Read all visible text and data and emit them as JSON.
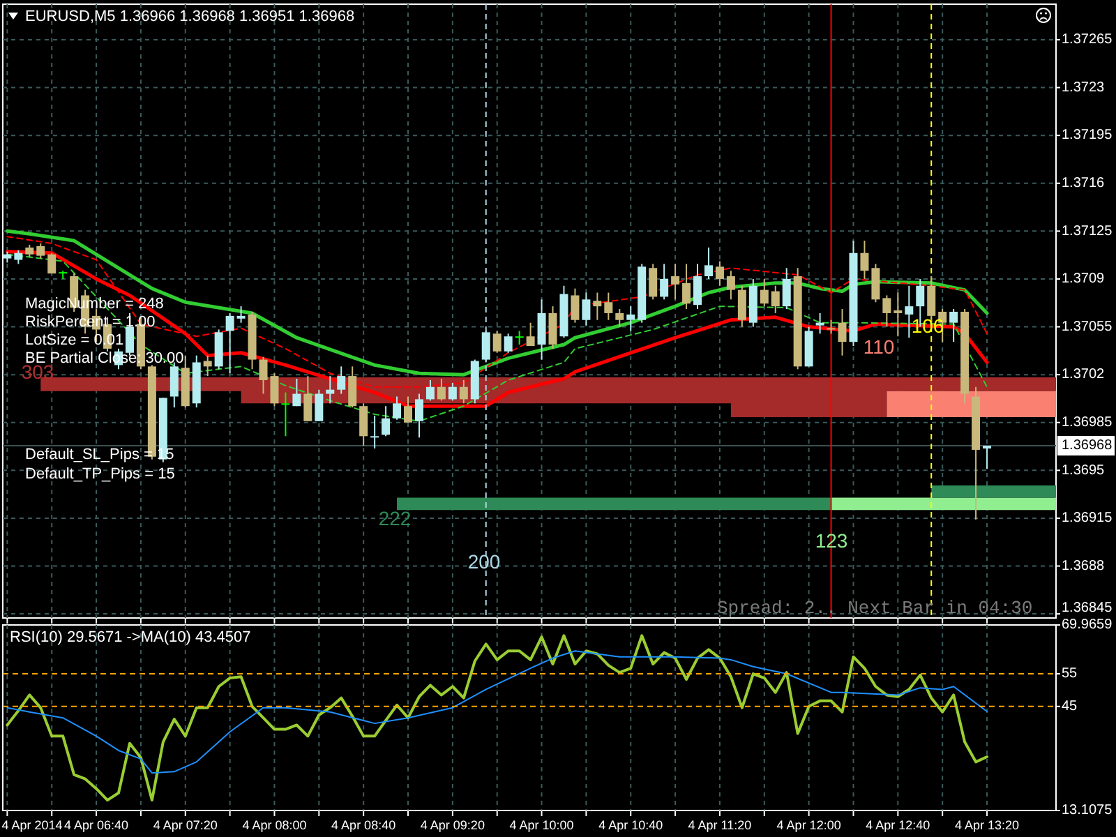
{
  "chart_data": [
    {
      "type": "candlestick",
      "title": "EURUSD,M5  1.36966 1.36968 1.36951 1.36968",
      "x": [
        "2014-04-04T06:00",
        "2014-04-04T06:05",
        "2014-04-04T06:10",
        "2014-04-04T06:15",
        "2014-04-04T06:20",
        "2014-04-04T06:25",
        "2014-04-04T06:30",
        "2014-04-04T06:35",
        "2014-04-04T06:40",
        "2014-04-04T06:45",
        "2014-04-04T06:50",
        "2014-04-04T06:55",
        "2014-04-04T07:00",
        "2014-04-04T07:05",
        "2014-04-04T07:10",
        "2014-04-04T07:15",
        "2014-04-04T07:20",
        "2014-04-04T07:25",
        "2014-04-04T07:30",
        "2014-04-04T07:35",
        "2014-04-04T07:40",
        "2014-04-04T07:45",
        "2014-04-04T07:50",
        "2014-04-04T07:55",
        "2014-04-04T08:00",
        "2014-04-04T08:05",
        "2014-04-04T08:10",
        "2014-04-04T08:15",
        "2014-04-04T08:20",
        "2014-04-04T08:25",
        "2014-04-04T08:30",
        "2014-04-04T08:35",
        "2014-04-04T08:40",
        "2014-04-04T08:45",
        "2014-04-04T08:50",
        "2014-04-04T08:55",
        "2014-04-04T09:00",
        "2014-04-04T09:05",
        "2014-04-04T09:10",
        "2014-04-04T09:15",
        "2014-04-04T09:20",
        "2014-04-04T09:25",
        "2014-04-04T09:30",
        "2014-04-04T09:35",
        "2014-04-04T09:40",
        "2014-04-04T09:45",
        "2014-04-04T09:50",
        "2014-04-04T09:55",
        "2014-04-04T10:00",
        "2014-04-04T10:05",
        "2014-04-04T10:10",
        "2014-04-04T10:15",
        "2014-04-04T10:20",
        "2014-04-04T10:25",
        "2014-04-04T10:30",
        "2014-04-04T10:35",
        "2014-04-04T10:40",
        "2014-04-04T10:45",
        "2014-04-04T10:50",
        "2014-04-04T10:55",
        "2014-04-04T11:00",
        "2014-04-04T11:05",
        "2014-04-04T11:10",
        "2014-04-04T11:15",
        "2014-04-04T11:20",
        "2014-04-04T11:25",
        "2014-04-04T11:30",
        "2014-04-04T11:35",
        "2014-04-04T11:40",
        "2014-04-04T11:45",
        "2014-04-04T11:50",
        "2014-04-04T11:55",
        "2014-04-04T12:00",
        "2014-04-04T12:05",
        "2014-04-04T12:10",
        "2014-04-04T12:15",
        "2014-04-04T12:20",
        "2014-04-04T12:25",
        "2014-04-04T12:30",
        "2014-04-04T12:35",
        "2014-04-04T12:40",
        "2014-04-04T12:45",
        "2014-04-04T12:50",
        "2014-04-04T12:55",
        "2014-04-04T13:00",
        "2014-04-04T13:05",
        "2014-04-04T13:10",
        "2014-04-04T13:15",
        "2014-04-04T13:20"
      ],
      "ohlc": [
        [
          1.37105,
          1.3711,
          1.37102,
          1.37108
        ],
        [
          1.37104,
          1.37111,
          1.37101,
          1.37109
        ],
        [
          1.37113,
          1.37115,
          1.37106,
          1.37108
        ],
        [
          1.37114,
          1.37116,
          1.37105,
          1.37107
        ],
        [
          1.37108,
          1.37109,
          1.37094,
          1.37094
        ],
        [
          1.37095,
          1.37096,
          1.3709,
          1.37095
        ],
        [
          1.37092,
          1.37094,
          1.37066,
          1.37069
        ],
        [
          1.37078,
          1.37082,
          1.3705,
          1.37055
        ],
        [
          1.37063,
          1.37068,
          1.37044,
          1.37053
        ],
        [
          1.37057,
          1.37062,
          1.37037,
          1.37039
        ],
        [
          1.37027,
          1.37039,
          1.37024,
          1.37037
        ],
        [
          1.37036,
          1.37065,
          1.37034,
          1.37055
        ],
        [
          1.37057,
          1.37062,
          1.37024,
          1.37026
        ],
        [
          1.37026,
          1.37027,
          1.36958,
          1.3696
        ],
        [
          1.36958,
          1.37003,
          1.36956,
          1.37003
        ],
        [
          1.37004,
          1.37029,
          1.36996,
          1.37026
        ],
        [
          1.37025,
          1.37034,
          1.36996,
          1.36997
        ],
        [
          1.36999,
          1.37034,
          1.36996,
          1.37029
        ],
        [
          1.3703,
          1.37034,
          1.37019,
          1.37026
        ],
        [
          1.37026,
          1.37053,
          1.37024,
          1.37051
        ],
        [
          1.37052,
          1.37065,
          1.37021,
          1.37063
        ],
        [
          1.37061,
          1.3707,
          1.37058,
          1.37063
        ],
        [
          1.37064,
          1.37066,
          1.37024,
          1.37031
        ],
        [
          1.37031,
          1.37033,
          1.37006,
          1.37016
        ],
        [
          1.37019,
          1.37021,
          1.36997,
          1.36999
        ],
        [
          1.36999,
          1.37007,
          1.36975,
          1.36999
        ],
        [
          1.36997,
          1.37017,
          1.36997,
          1.37006
        ],
        [
          1.37006,
          1.37019,
          1.36986,
          1.36986
        ],
        [
          1.36986,
          1.37009,
          1.36986,
          1.37006
        ],
        [
          1.37006,
          1.37019,
          1.36999,
          1.37009
        ],
        [
          1.37009,
          1.37026,
          1.37006,
          1.37019
        ],
        [
          1.37019,
          1.37026,
          1.36996,
          1.36997
        ],
        [
          1.36997,
          1.36999,
          1.36968,
          1.36975
        ],
        [
          1.36974,
          1.3699,
          1.36966,
          1.36975
        ],
        [
          1.36976,
          1.36997,
          1.36975,
          1.36988
        ],
        [
          1.36988,
          1.37004,
          1.36987,
          1.36999
        ],
        [
          1.36997,
          1.37004,
          1.36985,
          1.36985
        ],
        [
          1.36986,
          1.37006,
          1.36974,
          1.37002
        ],
        [
          1.37002,
          1.37016,
          1.37001,
          1.37011
        ],
        [
          1.37011,
          1.37017,
          1.37001,
          1.37002
        ],
        [
          1.37002,
          1.37014,
          1.37001,
          1.37011
        ],
        [
          1.37011,
          1.37016,
          1.36999,
          1.37002
        ],
        [
          1.37002,
          1.37031,
          1.36999,
          1.3703
        ],
        [
          1.37031,
          1.37052,
          1.37029,
          1.37051
        ],
        [
          1.3705,
          1.37052,
          1.37036,
          1.37037
        ],
        [
          1.37037,
          1.3705,
          1.37036,
          1.37048
        ],
        [
          1.37048,
          1.37052,
          1.37042,
          1.37048
        ],
        [
          1.37048,
          1.37058,
          1.37041,
          1.37041
        ],
        [
          1.37042,
          1.37075,
          1.37031,
          1.37065
        ],
        [
          1.37065,
          1.3707,
          1.37039,
          1.37042
        ],
        [
          1.37048,
          1.37085,
          1.37047,
          1.37079
        ],
        [
          1.37078,
          1.37083,
          1.37058,
          1.3706
        ],
        [
          1.3706,
          1.3708,
          1.37056,
          1.37075
        ],
        [
          1.37074,
          1.3708,
          1.3706,
          1.3707
        ],
        [
          1.37073,
          1.3708,
          1.3706,
          1.37065
        ],
        [
          1.37065,
          1.37068,
          1.37055,
          1.3706
        ],
        [
          1.3706,
          1.3707,
          1.37052,
          1.37064
        ],
        [
          1.3706,
          1.37101,
          1.37058,
          1.37099
        ],
        [
          1.37098,
          1.37101,
          1.37075,
          1.37077
        ],
        [
          1.37077,
          1.37101,
          1.37075,
          1.3709
        ],
        [
          1.37092,
          1.37101,
          1.37075,
          1.37086
        ],
        [
          1.37087,
          1.37101,
          1.37068,
          1.37072
        ],
        [
          1.37071,
          1.37101,
          1.37068,
          1.37092
        ],
        [
          1.37092,
          1.37113,
          1.3709,
          1.371
        ],
        [
          1.37099,
          1.37103,
          1.37085,
          1.3709
        ],
        [
          1.37092,
          1.37096,
          1.37075,
          1.37082
        ],
        [
          1.37082,
          1.37085,
          1.37055,
          1.3706
        ],
        [
          1.37058,
          1.3709,
          1.37055,
          1.37085
        ],
        [
          1.37082,
          1.3709,
          1.3707,
          1.37072
        ],
        [
          1.37081,
          1.37085,
          1.37065,
          1.3707
        ],
        [
          1.3707,
          1.37098,
          1.37068,
          1.3709
        ],
        [
          1.37092,
          1.37098,
          1.37024,
          1.37026
        ],
        [
          1.37026,
          1.37055,
          1.37026,
          1.37052
        ],
        [
          1.37056,
          1.37065,
          1.3705,
          1.37058
        ],
        [
          1.37054,
          1.3706,
          1.3705,
          1.37053
        ],
        [
          1.37058,
          1.37068,
          1.37034,
          1.37044
        ],
        [
          1.37044,
          1.37118,
          1.37041,
          1.37109
        ],
        [
          1.37109,
          1.37118,
          1.3709,
          1.37096
        ],
        [
          1.37098,
          1.37101,
          1.37073,
          1.37075
        ],
        [
          1.37076,
          1.37078,
          1.37055,
          1.37065
        ],
        [
          1.37067,
          1.3708,
          1.37048,
          1.37065
        ],
        [
          1.37064,
          1.37085,
          1.37047,
          1.3707
        ],
        [
          1.3707,
          1.3709,
          1.37055,
          1.37085
        ],
        [
          1.37085,
          1.37092,
          1.37055,
          1.37063
        ],
        [
          1.37066,
          1.37068,
          1.37044,
          1.37058
        ],
        [
          1.37058,
          1.37068,
          1.37044,
          1.37066
        ],
        [
          1.37066,
          1.37068,
          1.36999,
          1.37006
        ],
        [
          1.37004,
          1.37011,
          1.36914,
          1.36965
        ],
        [
          1.36966,
          1.36968,
          1.36951,
          1.36968
        ]
      ],
      "colors": [
        "#b4ecf0",
        "#b4ecf0",
        "#c8b87c",
        "#c8b87c",
        "#c8b87c",
        "#00ff00",
        "#c8b87c",
        "#c8b87c",
        "#c8b87c",
        "#c8b87c",
        "#b4ecf0",
        "#b4ecf0",
        "#c8b87c",
        "#c8b87c",
        "#b4ecf0",
        "#b4ecf0",
        "#c8b87c",
        "#b4ecf0",
        "#c8b87c",
        "#b4ecf0",
        "#b4ecf0",
        "#b4ecf0",
        "#c8b87c",
        "#c8b87c",
        "#c8b87c",
        "#00ff00",
        "#b4ecf0",
        "#c8b87c",
        "#b4ecf0",
        "#b4ecf0",
        "#b4ecf0",
        "#c8b87c",
        "#c8b87c",
        "#b4ecf0",
        "#b4ecf0",
        "#b4ecf0",
        "#c8b87c",
        "#b4ecf0",
        "#b4ecf0",
        "#c8b87c",
        "#b4ecf0",
        "#c8b87c",
        "#b4ecf0",
        "#b4ecf0",
        "#c8b87c",
        "#b4ecf0",
        "#00ff00",
        "#c8b87c",
        "#b4ecf0",
        "#c8b87c",
        "#b4ecf0",
        "#c8b87c",
        "#b4ecf0",
        "#c8b87c",
        "#c8b87c",
        "#c8b87c",
        "#b4ecf0",
        "#b4ecf0",
        "#c8b87c",
        "#b4ecf0",
        "#c8b87c",
        "#c8b87c",
        "#b4ecf0",
        "#b4ecf0",
        "#c8b87c",
        "#c8b87c",
        "#c8b87c",
        "#b4ecf0",
        "#c8b87c",
        "#c8b87c",
        "#b4ecf0",
        "#c8b87c",
        "#b4ecf0",
        "#b4ecf0",
        "#c8b87c",
        "#c8b87c",
        "#b4ecf0",
        "#c8b87c",
        "#c8b87c",
        "#c8b87c",
        "#c8b87c",
        "#b4ecf0",
        "#b4ecf0",
        "#c8b87c",
        "#c8b87c",
        "#b4ecf0",
        "#c8b87c",
        "#c8b87c",
        "#b4ecf0"
      ],
      "series": [
        {
          "type": "line",
          "color": "#a52a2a",
          "x": [
            "2014-04-04T06:15",
            "2014-04-04T07:45",
            "2014-04-04T07:45",
            "2014-04-04T11:25",
            "2014-04-04T11:25",
            "2014-04-04T12:35",
            "2014-04-04T12:35",
            "2014-04-04T13:51"
          ],
          "values": [
            null,
            null,
            null,
            null,
            null,
            null,
            null,
            null
          ],
          "lower": [
            1.37008,
            1.37008,
            1.36999,
            1.36999,
            1.36989,
            1.36989,
            1.37008,
            1.37008
          ],
          "upper": [
            1.37018,
            1.37018,
            1.37018,
            1.37018,
            1.37018,
            1.37018,
            1.37018,
            1.37018
          ]
        },
        {
          "type": "line",
          "color": "#fa8072",
          "x": [
            "2014-04-04T12:35",
            "2014-04-04T13:51"
          ],
          "values": [
            null,
            null
          ],
          "lower": [
            1.36989,
            1.36989
          ],
          "upper": [
            1.37008,
            1.37008
          ]
        },
        {
          "type": "line",
          "color": "#2e8b57",
          "x": [
            "2014-04-04T08:55",
            "2014-04-04T12:10"
          ],
          "values": [
            null,
            null
          ],
          "lower": [
            1.36921,
            1.36921
          ],
          "upper": [
            1.3693,
            1.3693
          ]
        },
        {
          "type": "line",
          "color": "#90ee90",
          "x": [
            "2014-04-04T12:10",
            "2014-04-04T13:51"
          ],
          "values": [
            null,
            null
          ],
          "lower": [
            1.36921,
            1.36921
          ],
          "upper": [
            1.3693,
            1.3693
          ]
        },
        {
          "type": "line",
          "color": "#2e8b57",
          "x": [
            "2014-04-04T12:55",
            "2014-04-04T13:51"
          ],
          "values": [
            null,
            null
          ],
          "lower": [
            1.3693,
            1.3693
          ],
          "upper": [
            1.36939,
            1.36939
          ]
        },
        {
          "type": "line",
          "color": "#32cd32",
          "line_style": "solid",
          "x": [
            "2014-04-04T06:00",
            "2014-04-04T06:10",
            "2014-04-04T06:30",
            "2014-04-04T06:55",
            "2014-04-04T07:05",
            "2014-04-04T07:20",
            "2014-04-04T07:50",
            "2014-04-04T08:10",
            "2014-04-04T08:45",
            "2014-04-04T09:05",
            "2014-04-04T09:25",
            "2014-04-04T09:45",
            "2014-04-04T10:10",
            "2014-04-04T10:15",
            "2014-04-04T10:40",
            "2014-04-04T11:00",
            "2014-04-04T11:15",
            "2014-04-04T11:25",
            "2014-04-04T11:45",
            "2014-04-04T11:55",
            "2014-04-04T12:05",
            "2014-04-04T12:15",
            "2014-04-04T12:20",
            "2014-04-04T12:30",
            "2014-04-04T12:55",
            "2014-04-04T13:10",
            "2014-04-04T13:20"
          ],
          "values": [
            1.37125,
            1.37123,
            1.37118,
            1.37093,
            1.37083,
            1.37073,
            1.37065,
            1.37047,
            1.37027,
            1.37021,
            1.3702,
            1.37032,
            1.37042,
            1.37047,
            1.37058,
            1.3707,
            1.3708,
            1.37084,
            1.37087,
            1.37087,
            1.37083,
            1.37081,
            1.37086,
            1.37088,
            1.37087,
            1.37082,
            1.37065
          ]
        },
        {
          "type": "line",
          "color": "#ff0000",
          "line_style": "solid",
          "x": [
            "2014-04-04T06:00",
            "2014-04-04T06:20",
            "2014-04-04T06:40",
            "2014-04-04T06:55",
            "2014-04-04T07:20",
            "2014-04-04T07:30",
            "2014-04-04T07:45",
            "2014-04-04T08:05",
            "2014-04-04T08:25",
            "2014-04-04T08:45",
            "2014-04-04T09:00",
            "2014-04-04T09:35",
            "2014-04-04T09:45",
            "2014-04-04T10:10",
            "2014-04-04T10:15",
            "2014-04-04T10:40",
            "2014-04-04T11:00",
            "2014-04-04T11:25",
            "2014-04-04T11:45",
            "2014-04-04T12:00",
            "2014-04-04T12:20",
            "2014-04-04T12:30",
            "2014-04-04T13:05",
            "2014-04-04T13:10",
            "2014-04-04T13:20"
          ],
          "values": [
            1.3711,
            1.37109,
            1.3709,
            1.37078,
            1.3705,
            1.37034,
            1.37036,
            1.37027,
            1.37017,
            1.37007,
            1.36997,
            1.36997,
            1.37007,
            1.37017,
            1.37022,
            1.37036,
            1.37047,
            1.3706,
            1.37062,
            1.37055,
            1.37052,
            1.37057,
            1.37055,
            1.3705,
            1.37029
          ]
        },
        {
          "type": "line",
          "color": "#ff0000",
          "line_style": "dashed",
          "x": [
            "2014-04-04T06:00",
            "2014-04-04T06:20",
            "2014-04-04T06:40",
            "2014-04-04T07:00",
            "2014-04-04T07:25",
            "2014-04-04T07:45",
            "2014-04-04T08:05",
            "2014-04-04T08:25",
            "2014-04-04T08:45",
            "2014-04-04T09:05",
            "2014-04-04T09:25",
            "2014-04-04T09:45",
            "2014-04-04T10:10",
            "2014-04-04T10:15",
            "2014-04-04T10:45",
            "2014-04-04T11:10",
            "2014-04-04T11:25",
            "2014-04-04T11:55",
            "2014-04-04T12:10",
            "2014-04-04T12:20",
            "2014-04-04T12:55",
            "2014-04-04T13:10",
            "2014-04-04T13:20"
          ],
          "values": [
            1.37121,
            1.37116,
            1.37104,
            1.37057,
            1.37048,
            1.37054,
            1.37039,
            1.37021,
            1.37011,
            1.37011,
            1.37014,
            1.37036,
            1.37057,
            1.3707,
            1.37077,
            1.37093,
            1.37098,
            1.37093,
            1.3708,
            1.3709,
            1.37085,
            1.37082,
            1.3705
          ]
        },
        {
          "type": "line",
          "color": "#32cd32",
          "line_style": "dashed",
          "x": [
            "2014-04-04T06:00",
            "2014-04-04T06:25",
            "2014-04-04T06:40",
            "2014-04-04T07:00",
            "2014-04-04T07:20",
            "2014-04-04T07:45",
            "2014-04-04T08:05",
            "2014-04-04T08:25",
            "2014-04-04T08:45",
            "2014-04-04T09:05",
            "2014-04-04T09:25",
            "2014-04-04T09:45",
            "2014-04-04T10:10",
            "2014-04-04T10:15",
            "2014-04-04T10:50",
            "2014-04-04T11:20",
            "2014-04-04T11:50",
            "2014-04-04T12:05",
            "2014-04-04T12:20",
            "2014-04-04T13:05",
            "2014-04-04T13:20"
          ],
          "values": [
            1.37108,
            1.37103,
            1.37077,
            1.37042,
            1.37021,
            1.37026,
            1.37012,
            1.37001,
            1.36991,
            1.36986,
            1.36997,
            1.37016,
            1.37029,
            1.37039,
            1.37053,
            1.3707,
            1.37069,
            1.37058,
            1.37058,
            1.37057,
            1.37011
          ]
        }
      ],
      "xlim": [
        "2014-04-04T05:58",
        "2014-04-04T13:51"
      ],
      "xticks": [
        "2014-04-04T06:00",
        "2014-04-04T06:20",
        "2014-04-04T06:40",
        "2014-04-04T07:00",
        "2014-04-04T07:20",
        "2014-04-04T07:40",
        "2014-04-04T08:00",
        "2014-04-04T08:20",
        "2014-04-04T08:40",
        "2014-04-04T09:00",
        "2014-04-04T09:20",
        "2014-04-04T09:40",
        "2014-04-04T10:00",
        "2014-04-04T10:20",
        "2014-04-04T10:40",
        "2014-04-04T11:00",
        "2014-04-04T11:20",
        "2014-04-04T11:40",
        "2014-04-04T12:00",
        "2014-04-04T12:20",
        "2014-04-04T12:40",
        "2014-04-04T13:00",
        "2014-04-04T13:20"
      ],
      "ylim": [
        1.36842,
        1.37291
      ],
      "yticks": [
        1.37265,
        1.3723,
        1.37195,
        1.3716,
        1.37125,
        1.3709,
        1.37055,
        1.3702,
        1.36985,
        1.3695,
        1.36915,
        1.3688,
        1.36845
      ],
      "grid": true,
      "tick_labels": "y",
      "ref_lines": [
        {
          "axis": "y",
          "value": 1.36968,
          "label": "1.36968",
          "color": "#3c5050"
        },
        {
          "axis": "x",
          "value": "2014-04-04T12:10",
          "color": "#ff0000"
        },
        {
          "axis": "x",
          "value": "2014-04-04T09:35",
          "color": "#add8e6",
          "line_style": "dashed"
        },
        {
          "axis": "x",
          "value": "2014-04-04T12:55",
          "color": "#ffff00",
          "line_style": "dashed"
        }
      ],
      "annotations": [
        "MagicNumber = 248",
        "RiskPercent = 1.00",
        "LotSize = 0.01",
        "BE Partial Close: 30.00",
        "Default_SL_Pips = 15",
        "Default_TP_Pips = 15",
        "Spread: 2.. Next Bar in 04:30",
        "303",
        "222",
        "200",
        "123",
        "110",
        "106"
      ]
    },
    {
      "type": "line",
      "title": "RSI(10) 29.5671  ->MA(10) 43.4507",
      "x": [
        "2014-04-04T06:00",
        "2014-04-04T06:05",
        "2014-04-04T06:10",
        "2014-04-04T06:15",
        "2014-04-04T06:20",
        "2014-04-04T06:25",
        "2014-04-04T06:30",
        "2014-04-04T06:35",
        "2014-04-04T06:40",
        "2014-04-04T06:45",
        "2014-04-04T06:50",
        "2014-04-04T06:55",
        "2014-04-04T07:00",
        "2014-04-04T07:05",
        "2014-04-04T07:10",
        "2014-04-04T07:15",
        "2014-04-04T07:20",
        "2014-04-04T07:25",
        "2014-04-04T07:30",
        "2014-04-04T07:35",
        "2014-04-04T07:40",
        "2014-04-04T07:45",
        "2014-04-04T07:50",
        "2014-04-04T07:55",
        "2014-04-04T08:00",
        "2014-04-04T08:05",
        "2014-04-04T08:10",
        "2014-04-04T08:15",
        "2014-04-04T08:20",
        "2014-04-04T08:25",
        "2014-04-04T08:30",
        "2014-04-04T08:35",
        "2014-04-04T08:40",
        "2014-04-04T08:45",
        "2014-04-04T08:50",
        "2014-04-04T08:55",
        "2014-04-04T09:00",
        "2014-04-04T09:05",
        "2014-04-04T09:10",
        "2014-04-04T09:15",
        "2014-04-04T09:20",
        "2014-04-04T09:25",
        "2014-04-04T09:30",
        "2014-04-04T09:35",
        "2014-04-04T09:40",
        "2014-04-04T09:45",
        "2014-04-04T09:50",
        "2014-04-04T09:55",
        "2014-04-04T10:00",
        "2014-04-04T10:05",
        "2014-04-04T10:10",
        "2014-04-04T10:15",
        "2014-04-04T10:20",
        "2014-04-04T10:25",
        "2014-04-04T10:30",
        "2014-04-04T10:35",
        "2014-04-04T10:40",
        "2014-04-04T10:45",
        "2014-04-04T10:50",
        "2014-04-04T10:55",
        "2014-04-04T11:00",
        "2014-04-04T11:05",
        "2014-04-04T11:10",
        "2014-04-04T11:15",
        "2014-04-04T11:20",
        "2014-04-04T11:25",
        "2014-04-04T11:30",
        "2014-04-04T11:35",
        "2014-04-04T11:40",
        "2014-04-04T11:45",
        "2014-04-04T11:50",
        "2014-04-04T11:55",
        "2014-04-04T12:00",
        "2014-04-04T12:05",
        "2014-04-04T12:10",
        "2014-04-04T12:15",
        "2014-04-04T12:20",
        "2014-04-04T12:25",
        "2014-04-04T12:30",
        "2014-04-04T12:35",
        "2014-04-04T12:40",
        "2014-04-04T12:45",
        "2014-04-04T12:50",
        "2014-04-04T12:55",
        "2014-04-04T13:00",
        "2014-04-04T13:05",
        "2014-04-04T13:10",
        "2014-04-04T13:15",
        "2014-04-04T13:20"
      ],
      "series": [
        {
          "color": "#9acd32",
          "values": [
            39.3,
            43.7,
            48.5,
            44.6,
            35.9,
            35.9,
            24.1,
            22.8,
            19.8,
            16.3,
            18.5,
            33.7,
            29.3,
            16.3,
            34.1,
            41.1,
            35.9,
            44.6,
            44.6,
            51.1,
            53.7,
            54.1,
            45.0,
            41.5,
            38.0,
            38.0,
            39.3,
            35.9,
            42.4,
            44.6,
            47.6,
            42.0,
            35.9,
            35.9,
            40.7,
            45.4,
            41.5,
            48.0,
            51.5,
            48.5,
            51.1,
            47.6,
            58.9,
            64.1,
            59.3,
            62.0,
            62.0,
            59.3,
            66.3,
            58.0,
            66.7,
            58.0,
            62.0,
            61.1,
            57.6,
            55.4,
            56.7,
            66.7,
            58.0,
            61.5,
            59.8,
            53.3,
            59.8,
            62.4,
            59.8,
            54.1,
            44.6,
            55.0,
            53.7,
            49.3,
            55.4,
            36.7,
            45.0,
            46.7,
            46.7,
            43.3,
            60.2,
            56.7,
            51.1,
            48.5,
            48.0,
            50.2,
            54.6,
            47.6,
            43.3,
            48.5,
            34.1,
            28.0,
            29.5671
          ]
        },
        {
          "color": "#1e90ff",
          "x": [
            "2014-04-04T06:00",
            "2014-04-04T06:10",
            "2014-04-04T06:25",
            "2014-04-04T06:40",
            "2014-04-04T06:50",
            "2014-04-04T07:00",
            "2014-04-04T07:05",
            "2014-04-04T07:15",
            "2014-04-04T07:25",
            "2014-04-04T07:40",
            "2014-04-04T07:55",
            "2014-04-04T08:05",
            "2014-04-04T08:25",
            "2014-04-04T08:45",
            "2014-04-04T09:00",
            "2014-04-04T09:20",
            "2014-04-04T09:35",
            "2014-04-04T09:55",
            "2014-04-04T10:05",
            "2014-04-04T10:15",
            "2014-04-04T10:35",
            "2014-04-04T11:00",
            "2014-04-04T11:20",
            "2014-04-04T11:25",
            "2014-04-04T11:35",
            "2014-04-04T11:50",
            "2014-04-04T12:10",
            "2014-04-04T12:15",
            "2014-04-04T12:40",
            "2014-04-04T12:50",
            "2014-04-04T13:00",
            "2014-04-04T13:05",
            "2014-04-04T13:20"
          ],
          "values": [
            44.6,
            43.3,
            41.5,
            35.9,
            31.5,
            28.9,
            24.6,
            25.0,
            28.0,
            37.2,
            44.6,
            44.6,
            43.3,
            39.8,
            41.5,
            44.6,
            50.2,
            56.7,
            59.8,
            62.0,
            60.2,
            60.2,
            59.8,
            59.3,
            57.2,
            55.0,
            49.3,
            49.3,
            48.5,
            50.7,
            50.2,
            51.1,
            43.4507
          ]
        }
      ],
      "xlim": [
        "2014-04-04T05:58",
        "2014-04-04T13:51"
      ],
      "xticks": [
        {
          "value": "2014-04-04T06:00",
          "label": "4 Apr 2014"
        },
        {
          "value": "2014-04-04T06:20",
          "label": null
        },
        {
          "value": "2014-04-04T06:40",
          "label": "4 Apr 06:40"
        },
        {
          "value": "2014-04-04T07:00",
          "label": null
        },
        {
          "value": "2014-04-04T07:20",
          "label": "4 Apr 07:20"
        },
        {
          "value": "2014-04-04T07:40",
          "label": null
        },
        {
          "value": "2014-04-04T08:00",
          "label": "4 Apr 08:00"
        },
        {
          "value": "2014-04-04T08:20",
          "label": null
        },
        {
          "value": "2014-04-04T08:40",
          "label": "4 Apr 08:40"
        },
        {
          "value": "2014-04-04T09:00",
          "label": null
        },
        {
          "value": "2014-04-04T09:20",
          "label": "4 Apr 09:20"
        },
        {
          "value": "2014-04-04T09:40",
          "label": null
        },
        {
          "value": "2014-04-04T10:00",
          "label": "4 Apr 10:00"
        },
        {
          "value": "2014-04-04T10:20",
          "label": null
        },
        {
          "value": "2014-04-04T10:40",
          "label": "4 Apr 10:40"
        },
        {
          "value": "2014-04-04T11:00",
          "label": null
        },
        {
          "value": "2014-04-04T11:20",
          "label": "4 Apr 11:20"
        },
        {
          "value": "2014-04-04T11:40",
          "label": null
        },
        {
          "value": "2014-04-04T12:00",
          "label": "4 Apr 12:00"
        },
        {
          "value": "2014-04-04T12:20",
          "label": null
        },
        {
          "value": "2014-04-04T12:40",
          "label": "4 Apr 12:40"
        },
        {
          "value": "2014-04-04T13:00",
          "label": null
        },
        {
          "value": "2014-04-04T13:20",
          "label": "4 Apr 13:20"
        }
      ],
      "ylim": [
        13.1075,
        69.9659
      ],
      "yticks": [
        69.9659,
        55,
        45,
        13.1075
      ],
      "grid": "x",
      "ref_lines": [
        {
          "axis": "y",
          "value": 55,
          "color": "#ffa500",
          "line_style": "dashed"
        },
        {
          "axis": "y",
          "value": 45,
          "color": "#ffa500",
          "line_style": "dashed"
        }
      ]
    }
  ]
}
